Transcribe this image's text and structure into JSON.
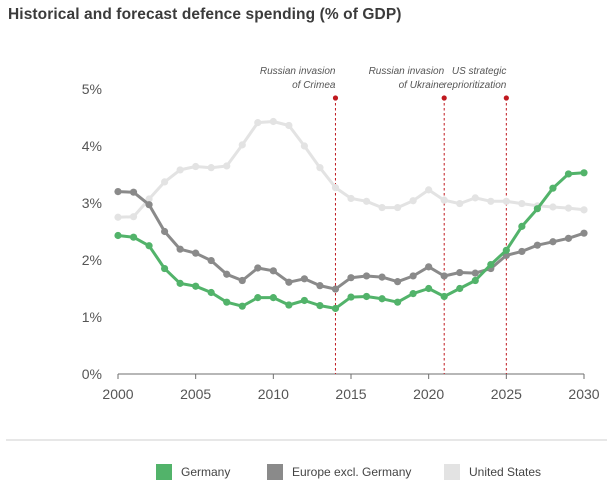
{
  "chart_data": {
    "type": "line",
    "title": "Historical and forecast defence spending (% of GDP)",
    "xlabel": "",
    "ylabel": "",
    "xlim": [
      2000,
      2030
    ],
    "ylim": [
      0,
      5
    ],
    "x_ticks": [
      "2000",
      "2005",
      "2010",
      "2015",
      "2020",
      "2025",
      "2030"
    ],
    "y_ticks": [
      "0%",
      "1%",
      "2%",
      "3%",
      "4%",
      "5%"
    ],
    "x": [
      2000,
      2001,
      2002,
      2003,
      2004,
      2005,
      2006,
      2007,
      2008,
      2009,
      2010,
      2011,
      2012,
      2013,
      2014,
      2015,
      2016,
      2017,
      2018,
      2019,
      2020,
      2021,
      2022,
      2023,
      2024,
      2025,
      2026,
      2027,
      2028,
      2029,
      2030
    ],
    "series": [
      {
        "name": "United States",
        "color": "#e3e3e3",
        "values": [
          2.75,
          2.76,
          3.07,
          3.37,
          3.58,
          3.64,
          3.62,
          3.65,
          4.02,
          4.41,
          4.43,
          4.36,
          4.0,
          3.62,
          3.27,
          3.08,
          3.03,
          2.92,
          2.92,
          3.04,
          3.23,
          3.05,
          2.99,
          3.09,
          3.03,
          3.03,
          2.99,
          2.95,
          2.93,
          2.91,
          2.88
        ]
      },
      {
        "name": "Europe excl. Germany",
        "color": "#8a8a8a",
        "values": [
          3.2,
          3.19,
          2.97,
          2.5,
          2.19,
          2.12,
          1.99,
          1.75,
          1.64,
          1.86,
          1.81,
          1.61,
          1.67,
          1.55,
          1.49,
          1.69,
          1.72,
          1.7,
          1.62,
          1.72,
          1.88,
          1.72,
          1.78,
          1.77,
          1.85,
          2.08,
          2.15,
          2.26,
          2.32,
          2.38,
          2.47
        ]
      },
      {
        "name": "Germany",
        "color": "#52b36a",
        "values": [
          2.43,
          2.4,
          2.25,
          1.85,
          1.59,
          1.54,
          1.43,
          1.26,
          1.19,
          1.34,
          1.34,
          1.21,
          1.29,
          1.2,
          1.15,
          1.35,
          1.36,
          1.32,
          1.26,
          1.41,
          1.5,
          1.36,
          1.5,
          1.64,
          1.92,
          2.17,
          2.59,
          2.9,
          3.26,
          3.51,
          3.53
        ]
      }
    ],
    "annotations": [
      {
        "x": 2014,
        "label_lines": [
          "Russian invasion",
          "of Crimea"
        ],
        "color": "#c0191f"
      },
      {
        "x": 2021,
        "label_lines": [
          "Russian invasion",
          "of Ukraine"
        ],
        "color": "#c0191f"
      },
      {
        "x": 2025,
        "label_lines": [
          "US strategic",
          "reprioritization"
        ],
        "color": "#c0191f"
      }
    ],
    "legend": {
      "placement": "bottom",
      "entries": [
        "Germany",
        "Europe excl. Germany",
        "United States"
      ]
    },
    "grid": false
  }
}
